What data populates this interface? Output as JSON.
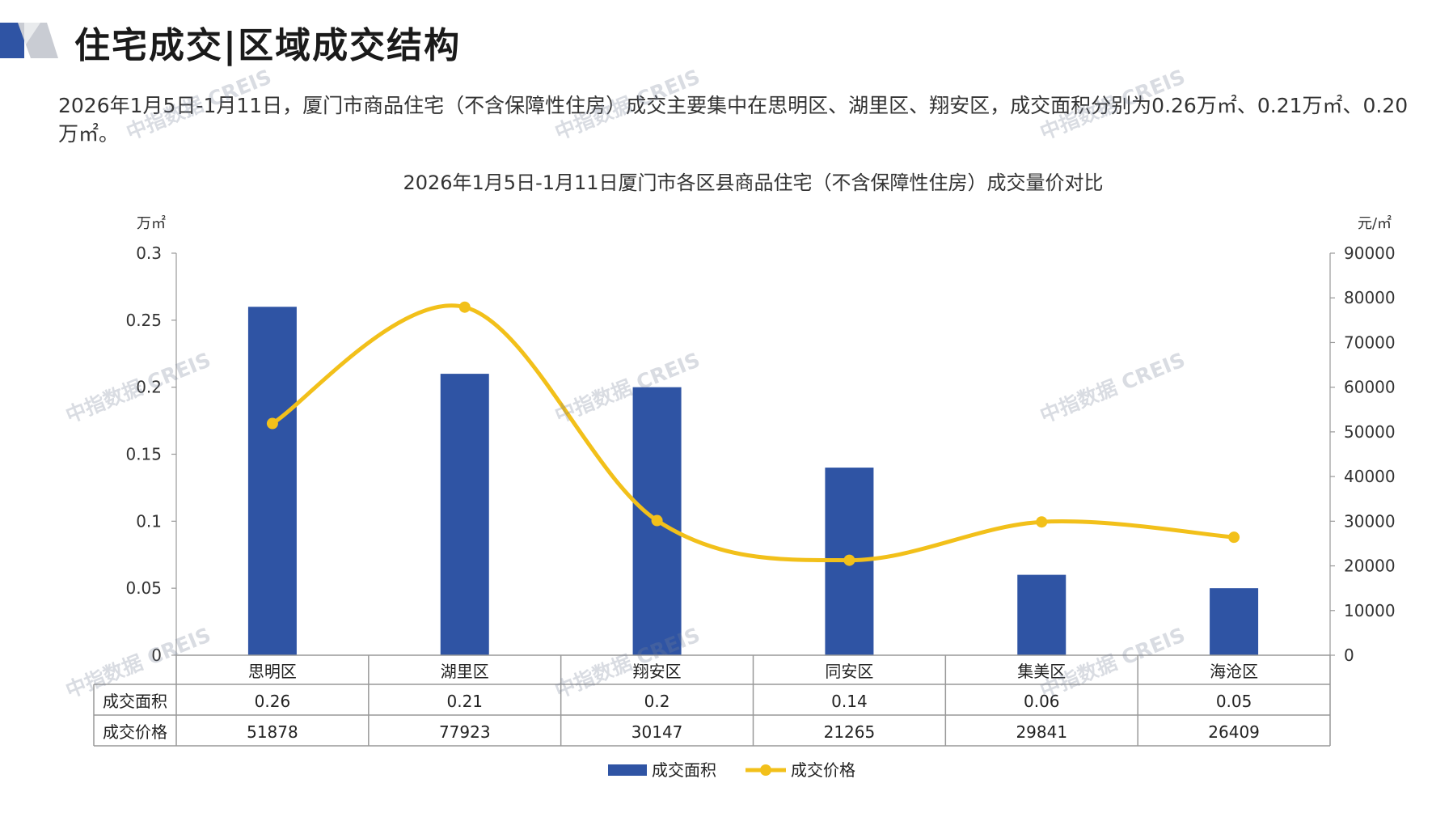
{
  "header": {
    "title": "住宅成交|区域成交结构",
    "accent_color": "#2f54a4"
  },
  "summary": {
    "line1": "2026年1月5日-1月11日，厦门市商品住宅（不含保障性住房）成交主要集中在思明区、湖里区、翔安区，成交面积分别为0.26万㎡、0.21",
    "line2": "万㎡、0.20万㎡。"
  },
  "watermark": "中指数据 CREIS",
  "chart_data": {
    "type": "bar",
    "title": "2026年1月5日-1月11日厦门市各区县商品住宅（不含保障性住房）成交量价对比",
    "categories": [
      "思明区",
      "湖里区",
      "翔安区",
      "同安区",
      "集美区",
      "海沧区"
    ],
    "series": [
      {
        "name": "成交面积",
        "type": "bar",
        "axis": "left",
        "color": "#2f54a4",
        "values": [
          0.26,
          0.21,
          0.2,
          0.14,
          0.06,
          0.05
        ],
        "labels": [
          "0.26",
          "0.21",
          "0.2",
          "0.14",
          "0.06",
          "0.05"
        ]
      },
      {
        "name": "成交价格",
        "type": "line",
        "axis": "right",
        "color": "#f2c01a",
        "smooth": true,
        "values": [
          51878,
          77923,
          30147,
          21265,
          29841,
          26409
        ],
        "labels": [
          "51878",
          "77923",
          "30147",
          "21265",
          "29841",
          "26409"
        ]
      }
    ],
    "y_left": {
      "unit": "万㎡",
      "min": 0,
      "max": 0.3,
      "ticks": [
        "0",
        "0.05",
        "0.1",
        "0.15",
        "0.2",
        "0.25",
        "0.3"
      ]
    },
    "y_right": {
      "unit": "元/㎡",
      "min": 0,
      "max": 90000,
      "ticks": [
        "0",
        "10000",
        "20000",
        "30000",
        "40000",
        "50000",
        "60000",
        "70000",
        "80000",
        "90000"
      ]
    },
    "data_table": true,
    "legend_position": "bottom"
  }
}
